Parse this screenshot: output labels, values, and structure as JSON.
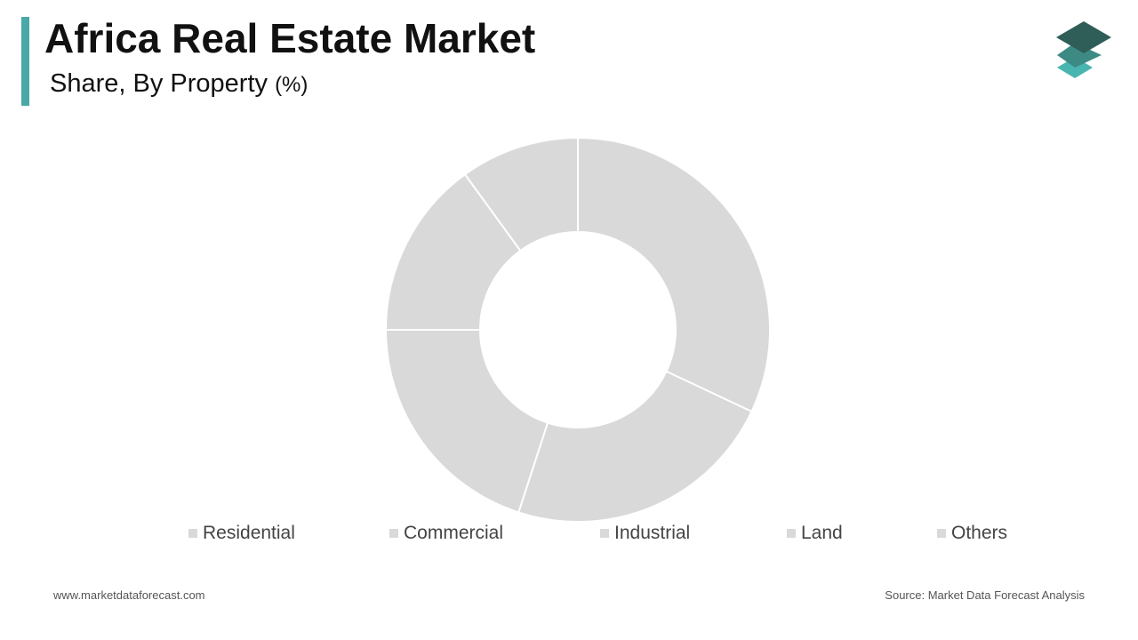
{
  "header": {
    "title": "Africa Real Estate Market",
    "subtitle": "Share, By Property",
    "subtitle_unit": "(%)"
  },
  "chart_data": {
    "type": "pie",
    "donut": true,
    "categories": [
      "Residential",
      "Commercial",
      "Industrial",
      "Land",
      "Others"
    ],
    "values": [
      32,
      23,
      20,
      15,
      10
    ],
    "slice_color": "#D9D9D9",
    "separator_color": "#FFFFFF",
    "legend": {
      "position": "bottom",
      "items": [
        "Residential",
        "Commercial",
        "Industrial",
        "Land",
        "Others"
      ]
    }
  },
  "colors": {
    "accent": "#49A9A6",
    "logo_top": "#2F5D57",
    "logo_middle": "#3D8A84",
    "logo_bottom": "#49B5B0",
    "legend_swatch": "#D9D9D9"
  },
  "logo": {
    "icon": "layered-stack-icon"
  },
  "footer": {
    "website": "www.marketdataforecast.com",
    "source": "Source: Market Data Forecast Analysis"
  }
}
